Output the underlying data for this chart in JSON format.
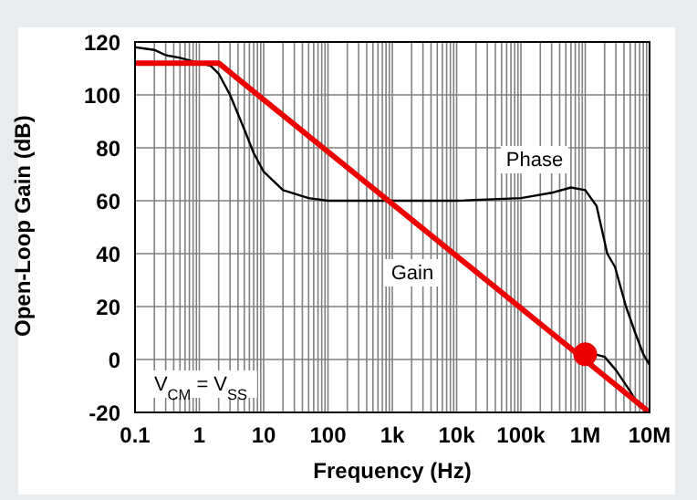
{
  "chart_data": {
    "type": "line",
    "xlabel": "Frequency (Hz)",
    "ylabel": "Open-Loop Gain (dB)",
    "log": "x",
    "xlim": [
      0.1,
      10000000
    ],
    "ylim": [
      -20,
      120
    ],
    "xticks": [
      {
        "value": 0.1,
        "label": "0.1"
      },
      {
        "value": 1,
        "label": "1"
      },
      {
        "value": 10,
        "label": "10"
      },
      {
        "value": 100,
        "label": "100"
      },
      {
        "value": 1000,
        "label": "1k"
      },
      {
        "value": 10000,
        "label": "10k"
      },
      {
        "value": 100000,
        "label": "100k"
      },
      {
        "value": 1000000,
        "label": "1M"
      },
      {
        "value": 10000000,
        "label": "10M"
      }
    ],
    "yticks": [
      -20,
      0,
      20,
      40,
      60,
      80,
      100,
      120
    ],
    "grid": true,
    "marker": "none",
    "series": [
      {
        "color": "#000000",
        "x": [
          0.1,
          0.2,
          0.3,
          0.5,
          1,
          1.5,
          2,
          3,
          5,
          7,
          10,
          20,
          50,
          100,
          1000,
          10000,
          100000,
          300000,
          600000,
          1000000,
          1500000,
          2200000,
          2900000,
          4300000,
          6000000,
          8000000,
          10000000
        ],
        "values": [
          118,
          117,
          115,
          114,
          112,
          111,
          108,
          100,
          87,
          78,
          71,
          64,
          61,
          60,
          60,
          60,
          61,
          63,
          65,
          64,
          58,
          40,
          35,
          20,
          10,
          2,
          -2
        ]
      },
      {
        "color": "#000000",
        "x": [
          1400000,
          2000000,
          3000000,
          5000000,
          7000000
        ],
        "values": [
          2,
          1,
          -4,
          -12,
          -18
        ]
      },
      {
        "color": "#ee0000",
        "x": [
          0.1,
          2,
          10000000
        ],
        "values": [
          112,
          112,
          -20
        ]
      },
      {
        "type": "scatter",
        "color": "#ee0000",
        "marker": "circle",
        "x": [
          1000000
        ],
        "values": [
          2
        ]
      }
    ],
    "annotations": [
      "Phase",
      "Gain",
      "V$_{CM}$ = V$_{SS}$"
    ]
  }
}
